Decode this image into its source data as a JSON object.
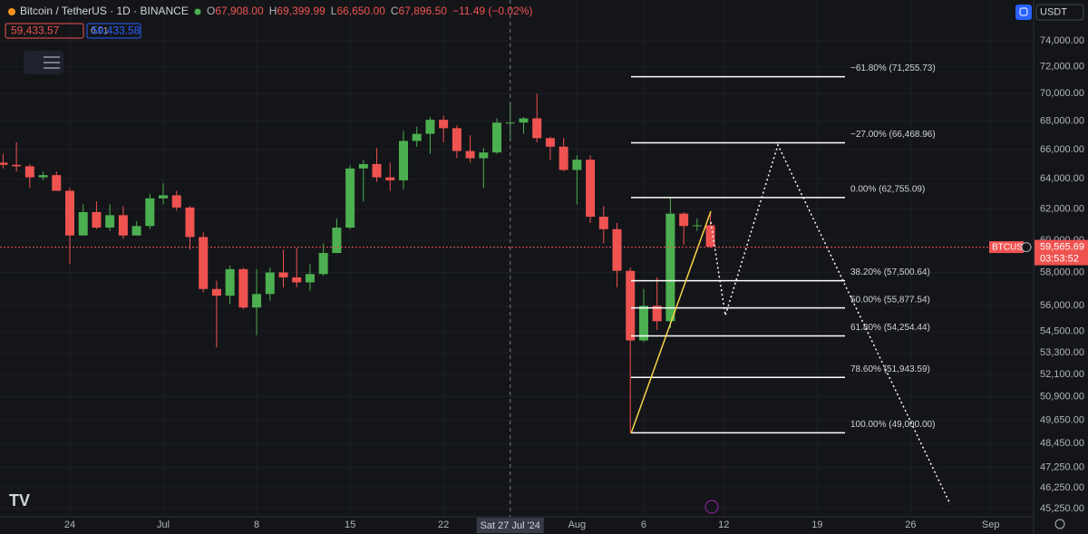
{
  "ui": {
    "symbol": "Bitcoin / TetherUS · 1D · BINANCE",
    "ohlc": [
      {
        "key": "O",
        "value": "67,908.00"
      },
      {
        "key": "H",
        "value": "69,399.99"
      },
      {
        "key": "L",
        "value": "66,650.00"
      },
      {
        "key": "C",
        "value": "67,896.50"
      }
    ],
    "change": "−11.49 (−0.02%)",
    "sell_price": "59,433.57",
    "spread": "0.01",
    "buy_price": "59,433.58",
    "currency": "USDT",
    "crosshair_label": "Sat 27 Jul '24"
  },
  "chart_data": {
    "type": "candlestick",
    "log": true,
    "up_color": "#4caf50",
    "down_color": "#ef5350",
    "categories": [
      null,
      null,
      null,
      null,
      null,
      "24",
      null,
      null,
      null,
      null,
      null,
      null,
      "Jul",
      null,
      null,
      null,
      null,
      null,
      null,
      "8",
      null,
      null,
      null,
      null,
      null,
      null,
      "15",
      null,
      null,
      null,
      null,
      null,
      null,
      "22",
      null,
      null,
      null,
      null,
      null,
      null,
      null,
      null,
      null,
      "Aug",
      null,
      null,
      null,
      null,
      "6",
      null,
      null,
      null,
      null,
      null,
      "12",
      null,
      null,
      null,
      null,
      null,
      null,
      "19",
      null,
      null,
      null,
      null,
      null,
      null,
      "26",
      null,
      null,
      null,
      null,
      null,
      "Sep",
      null,
      null,
      null
    ],
    "open": [
      65100,
      64950,
      64850,
      64100,
      64250,
      63200,
      60300,
      61800,
      60800,
      61600,
      60300,
      60900,
      62700,
      62900,
      62100,
      60200,
      57000,
      56600,
      58200,
      55900,
      56700,
      58000,
      57700,
      57400,
      57900,
      59200,
      60800,
      64700,
      65000,
      64100,
      63900,
      66600,
      67100,
      68100,
      67500,
      65900,
      65400,
      65800,
      67900,
      67900,
      68200,
      66800,
      66200,
      64600,
      65300,
      61500,
      60700,
      58100,
      54000,
      56000,
      55100,
      61700,
      60900,
      60950,
      null,
      null,
      null,
      null,
      null,
      null,
      null,
      null,
      null,
      null,
      null,
      null,
      null,
      null,
      null,
      null,
      null,
      null,
      null,
      null,
      null,
      null,
      null,
      null
    ],
    "high": [
      65700,
      66500,
      65000,
      64500,
      64500,
      63400,
      62300,
      62500,
      62300,
      62200,
      61200,
      63000,
      63700,
      63200,
      62200,
      60500,
      57500,
      58400,
      58300,
      58200,
      58300,
      59400,
      59500,
      58500,
      59800,
      61400,
      64900,
      65300,
      66100,
      65100,
      67300,
      67600,
      68300,
      68400,
      67700,
      67000,
      66100,
      68200,
      69400,
      68300,
      70000,
      66900,
      66800,
      65600,
      65600,
      62200,
      61100,
      58300,
      57000,
      57700,
      62700,
      61800,
      61400,
      61800,
      null,
      null,
      null,
      null,
      null,
      null,
      null,
      null,
      null,
      null,
      null,
      null,
      null,
      null,
      null,
      null,
      null,
      null,
      null,
      null,
      null,
      null,
      null,
      null
    ],
    "low": [
      64700,
      64500,
      63400,
      63900,
      63200,
      58500,
      60300,
      60700,
      60600,
      60100,
      60300,
      60700,
      62300,
      61900,
      59400,
      56800,
      53600,
      56100,
      55800,
      54300,
      56300,
      57100,
      57100,
      56900,
      57800,
      59200,
      60700,
      62500,
      63800,
      63200,
      63300,
      66200,
      65700,
      66500,
      65400,
      65100,
      63400,
      65700,
      66600,
      67100,
      66500,
      65300,
      64500,
      62300,
      61100,
      59800,
      57100,
      49000,
      53900,
      54600,
      54700,
      59700,
      60600,
      59500,
      null,
      null,
      null,
      null,
      null,
      null,
      null,
      null,
      null,
      null,
      null,
      null,
      null,
      null,
      null,
      null,
      null,
      null,
      null,
      null,
      null,
      null,
      null,
      null
    ],
    "close": [
      64950,
      64850,
      64100,
      64250,
      63200,
      60300,
      61800,
      60800,
      61600,
      60300,
      60900,
      62700,
      62900,
      62100,
      60200,
      57000,
      56600,
      58200,
      55900,
      56700,
      58000,
      57700,
      57400,
      57900,
      59200,
      60800,
      64700,
      65000,
      64100,
      63900,
      66600,
      67100,
      68100,
      67500,
      65900,
      65400,
      65800,
      67900,
      67900,
      68200,
      66800,
      66200,
      64600,
      65300,
      61500,
      60700,
      58100,
      54000,
      56000,
      55100,
      61700,
      60900,
      60950,
      59600,
      null,
      null,
      null,
      null,
      null,
      null,
      null,
      null,
      null,
      null,
      null,
      null,
      null,
      null,
      null,
      null,
      null,
      null,
      null,
      null,
      null,
      null,
      null,
      null
    ],
    "ylim": [
      44860,
      77240
    ],
    "yticks": [
      {
        "value": 74000,
        "label": "74,000.00"
      },
      {
        "value": 72000,
        "label": "72,000.00"
      },
      {
        "value": 70000,
        "label": "70,000.00"
      },
      {
        "value": 68000,
        "label": "68,000.00"
      },
      {
        "value": 66000,
        "label": "66,000.00"
      },
      {
        "value": 64000,
        "label": "64,000.00"
      },
      {
        "value": 62000,
        "label": "62,000.00"
      },
      {
        "value": 60000,
        "label": "60,000.00"
      },
      {
        "value": 58000,
        "label": "58,000.00"
      },
      {
        "value": 56000,
        "label": "56,000.00"
      },
      {
        "value": 54500,
        "label": "54,500.00"
      },
      {
        "value": 53300,
        "label": "53,300.00"
      },
      {
        "value": 52100,
        "label": "52,100.00"
      },
      {
        "value": 50900,
        "label": "50,900.00"
      },
      {
        "value": 49650,
        "label": "49,650.00"
      },
      {
        "value": 48450,
        "label": "48,450.00"
      },
      {
        "value": 47250,
        "label": "47,250.00"
      },
      {
        "value": 46250,
        "label": "46,250.00"
      },
      {
        "value": 45250,
        "label": "45,250.00"
      }
    ],
    "fib_levels": [
      {
        "value": 71255.73,
        "label": "−61.80% (71,255.73)"
      },
      {
        "value": 66468.96,
        "label": "−27.00% (66,468.96)"
      },
      {
        "value": 62755.09,
        "label": "0.00% (62,755.09)"
      },
      {
        "value": 57500.64,
        "label": "38.20% (57,500.64)"
      },
      {
        "value": 55877.54,
        "label": "50.00% (55,877.54)"
      },
      {
        "value": 54254.44,
        "label": "61.80% (54,254.44)"
      },
      {
        "value": 51943.59,
        "label": "78.60% (51,943.59)"
      },
      {
        "value": 49000.0,
        "label": "100.00% (49,000.00)"
      }
    ],
    "last_price": {
      "value": 59565.69,
      "label": "59,565.69"
    },
    "symbol_tag": "BTCUS",
    "countdown": "03:53:52"
  }
}
